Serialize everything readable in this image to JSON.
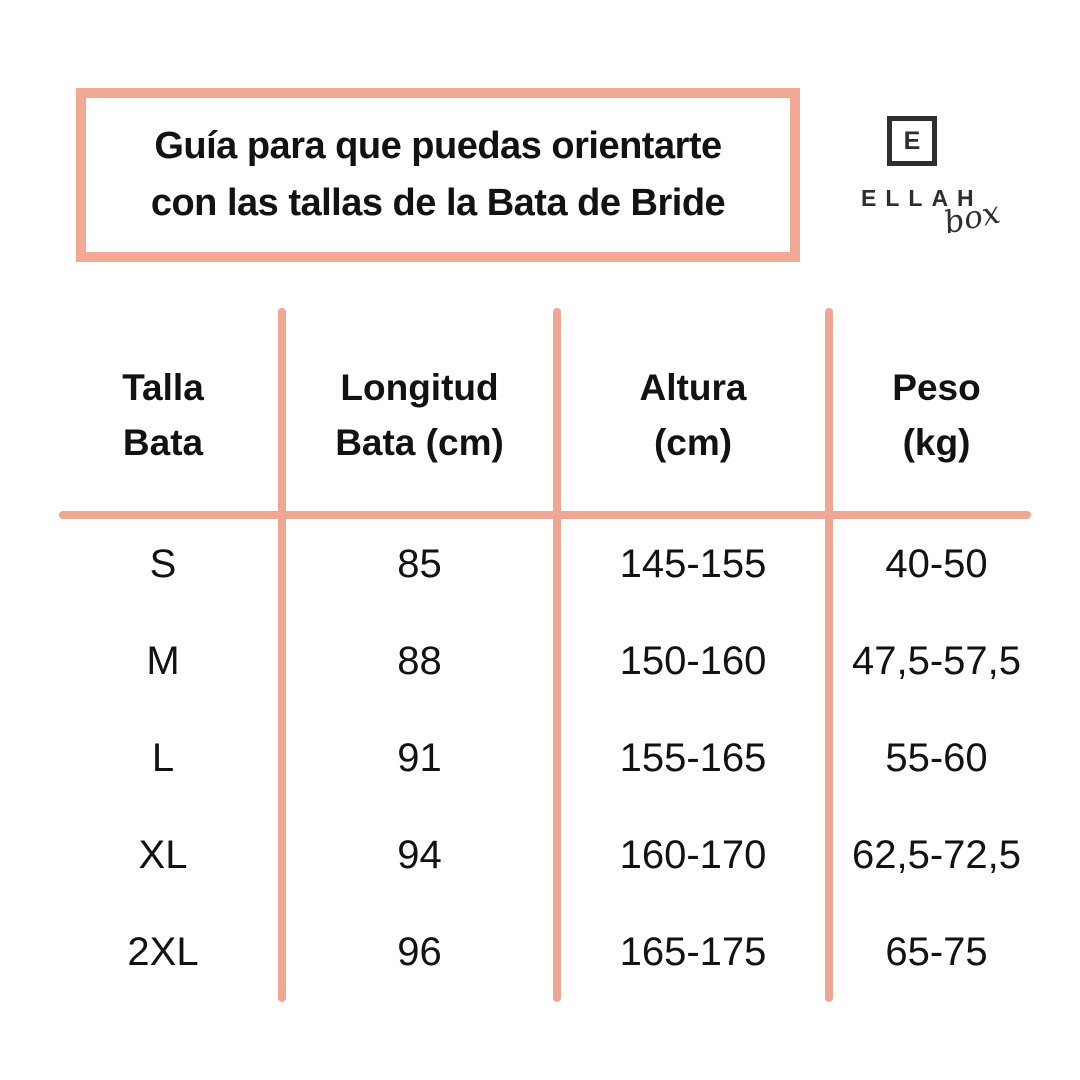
{
  "page": {
    "background": "#ffffff",
    "accent_color": "#efa794",
    "title_border_color": "#f2a893",
    "text_color": "#121212",
    "logo_color": "#2e2e2e"
  },
  "header": {
    "title_line1": "Guía para que puedas orientarte",
    "title_line2": "con las tallas de la Bata de Bride"
  },
  "logo": {
    "monogram": "E",
    "brand": "ELLAH",
    "sub": "box"
  },
  "table": {
    "columns": [
      {
        "label_line1": "Talla",
        "label_line2": "Bata"
      },
      {
        "label_line1": "Longitud",
        "label_line2": "Bata (cm)"
      },
      {
        "label_line1": "Altura",
        "label_line2": "(cm)"
      },
      {
        "label_line1": "Peso",
        "label_line2": "(kg)"
      }
    ],
    "rows": [
      {
        "size": "S",
        "length": "85",
        "height": "145-155",
        "weight": "40-50"
      },
      {
        "size": "M",
        "length": "88",
        "height": "150-160",
        "weight": "47,5-57,5"
      },
      {
        "size": "L",
        "length": "91",
        "height": "155-165",
        "weight": "55-60"
      },
      {
        "size": "XL",
        "length": "94",
        "height": "160-170",
        "weight": "62,5-72,5"
      },
      {
        "size": "2XL",
        "length": "96",
        "height": "165-175",
        "weight": "65-75"
      }
    ]
  },
  "chart_data": {
    "type": "table",
    "title": "Guía para que puedas orientarte con las tallas de la Bata de Bride",
    "columns": [
      "Talla Bata",
      "Longitud Bata (cm)",
      "Altura (cm)",
      "Peso (kg)"
    ],
    "rows": [
      [
        "S",
        "85",
        "145-155",
        "40-50"
      ],
      [
        "M",
        "88",
        "150-160",
        "47,5-57,5"
      ],
      [
        "L",
        "91",
        "155-165",
        "55-60"
      ],
      [
        "XL",
        "94",
        "160-170",
        "62,5-72,5"
      ],
      [
        "2XL",
        "96",
        "165-175",
        "65-75"
      ]
    ]
  }
}
